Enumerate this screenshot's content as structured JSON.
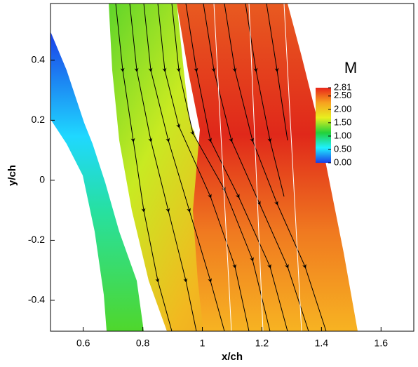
{
  "chart_data": {
    "type": "contour",
    "xlabel": "x/ch",
    "ylabel": "y/ch",
    "xlim": [
      0.49,
      1.71
    ],
    "ylim": [
      -0.503,
      0.589
    ],
    "xticks": [
      0.6,
      0.8,
      1,
      1.2,
      1.4,
      1.6
    ],
    "yticks": [
      0.4,
      0.2,
      0,
      -0.2,
      -0.4
    ],
    "colorbar": {
      "title": "M",
      "clim": [
        0,
        2.81
      ],
      "colormap": [
        "#1a3ee8",
        "#1ff0ff",
        "#22d13a",
        "#e8ef1f",
        "#f7a21f",
        "#e8241a"
      ],
      "ticks": [
        2.81,
        {
          "value": 2.5,
          "label": "2.50"
        },
        {
          "value": 2,
          "label": "2.00"
        },
        {
          "value": 1.5,
          "label": "1.50"
        },
        {
          "value": 1,
          "label": "1.00"
        },
        {
          "value": 0.5,
          "label": "0.50"
        },
        {
          "value": 0,
          "label": "0.00"
        }
      ]
    }
  }
}
